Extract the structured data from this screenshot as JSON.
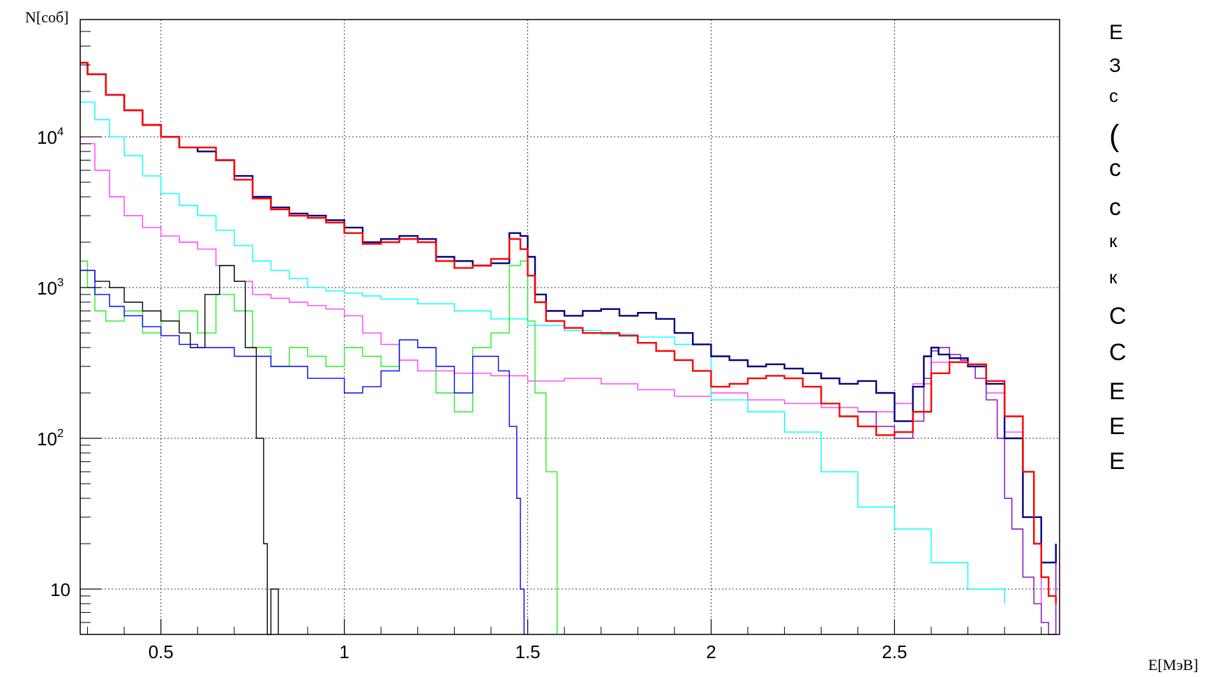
{
  "chart_data": {
    "type": "line",
    "title": "",
    "ylabel": "N[соб]",
    "xlabel": "E[МэВ]",
    "xlim": [
      0.28,
      2.95
    ],
    "ylim": [
      5,
      60000
    ],
    "y_scale": "log",
    "grid": true,
    "x_ticks": [
      {
        "value": 0.5,
        "label": "0.5"
      },
      {
        "value": 1.0,
        "label": "1"
      },
      {
        "value": 1.5,
        "label": "1.5"
      },
      {
        "value": 2.0,
        "label": "2"
      },
      {
        "value": 2.5,
        "label": "2.5"
      }
    ],
    "y_ticks": [
      {
        "value": 10,
        "label": "10",
        "exp": ""
      },
      {
        "value": 100,
        "label": "10",
        "exp": "2"
      },
      {
        "value": 1000,
        "label": "10",
        "exp": "3"
      },
      {
        "value": 10000,
        "label": "10",
        "exp": "4"
      }
    ],
    "series": [
      {
        "color": "#ff3cff",
        "x": [
          0.28,
          0.32,
          0.36,
          0.4,
          0.45,
          0.5,
          0.55,
          0.6,
          0.65,
          0.7,
          0.75,
          0.8,
          0.85,
          0.9,
          0.95,
          1.0,
          1.05,
          1.1,
          1.15,
          1.2,
          1.3,
          1.4,
          1.5,
          1.6,
          1.7,
          1.8,
          1.9,
          2.0,
          2.1,
          2.2,
          2.3,
          2.4,
          2.5,
          2.55,
          2.6,
          2.65,
          2.7,
          2.75,
          2.8,
          2.85,
          2.9
        ],
        "y": [
          9000,
          6000,
          4000,
          3000,
          2500,
          2200,
          2000,
          1800,
          1400,
          1100,
          900,
          850,
          800,
          760,
          720,
          650,
          500,
          420,
          330,
          280,
          270,
          260,
          240,
          250,
          230,
          210,
          190,
          200,
          180,
          170,
          160,
          150,
          170,
          230,
          320,
          340,
          300,
          200,
          110,
          30,
          8
        ]
      },
      {
        "color": "#00ffff",
        "x": [
          0.28,
          0.32,
          0.36,
          0.4,
          0.45,
          0.5,
          0.55,
          0.6,
          0.65,
          0.7,
          0.75,
          0.8,
          0.85,
          0.9,
          0.95,
          1.0,
          1.05,
          1.1,
          1.2,
          1.3,
          1.4,
          1.5,
          1.6,
          1.7,
          1.8,
          1.9,
          2.0,
          2.1,
          2.2,
          2.3,
          2.4,
          2.5,
          2.6,
          2.7,
          2.8
        ],
        "y": [
          17000,
          13000,
          10000,
          7500,
          5500,
          4200,
          3500,
          3000,
          2400,
          1900,
          1500,
          1300,
          1150,
          1000,
          950,
          920,
          880,
          840,
          780,
          700,
          620,
          560,
          520,
          490,
          470,
          420,
          180,
          150,
          110,
          60,
          35,
          25,
          15,
          10,
          8
        ]
      },
      {
        "color": "#22ee22",
        "x": [
          0.28,
          0.3,
          0.32,
          0.35,
          0.4,
          0.45,
          0.5,
          0.55,
          0.6,
          0.65,
          0.7,
          0.75,
          0.8,
          0.85,
          0.9,
          0.95,
          1.0,
          1.05,
          1.1,
          1.15,
          1.2,
          1.25,
          1.3,
          1.35,
          1.4,
          1.45,
          1.48,
          1.5,
          1.52,
          1.55,
          1.58
        ],
        "y": [
          1500,
          1000,
          700,
          600,
          700,
          500,
          600,
          700,
          500,
          900,
          700,
          400,
          300,
          400,
          350,
          300,
          400,
          350,
          300,
          450,
          400,
          200,
          150,
          400,
          500,
          1400,
          1500,
          600,
          200,
          60,
          5
        ]
      },
      {
        "color": "#000000",
        "x": [
          0.28,
          0.32,
          0.36,
          0.4,
          0.45,
          0.5,
          0.55,
          0.58,
          0.62,
          0.66,
          0.7,
          0.73,
          0.76,
          0.78,
          0.79,
          0.8,
          0.82
        ],
        "y": [
          1300,
          1100,
          1000,
          800,
          700,
          600,
          500,
          400,
          900,
          1400,
          1100,
          400,
          100,
          20,
          5,
          10,
          5
        ]
      },
      {
        "color": "#0000ff",
        "x": [
          0.28,
          0.32,
          0.36,
          0.4,
          0.45,
          0.5,
          0.55,
          0.6,
          0.7,
          0.8,
          0.9,
          1.0,
          1.05,
          1.1,
          1.15,
          1.2,
          1.25,
          1.3,
          1.35,
          1.4,
          1.42,
          1.45,
          1.47,
          1.48,
          1.49
        ],
        "y": [
          1300,
          900,
          750,
          650,
          550,
          480,
          420,
          400,
          350,
          300,
          250,
          200,
          220,
          280,
          450,
          400,
          300,
          200,
          350,
          350,
          280,
          120,
          40,
          10,
          5
        ]
      },
      {
        "color": "#8000c0",
        "x": [
          2.4,
          2.45,
          2.5,
          2.55,
          2.58,
          2.6,
          2.62,
          2.65,
          2.68,
          2.7,
          2.72,
          2.75,
          2.78,
          2.8,
          2.82,
          2.85,
          2.88,
          2.9,
          2.92,
          2.94
        ],
        "y": [
          150,
          120,
          100,
          130,
          250,
          380,
          400,
          360,
          330,
          300,
          250,
          180,
          100,
          40,
          25,
          12,
          8,
          6,
          5,
          20
        ]
      },
      {
        "color": "#000080",
        "x": [
          0.28,
          0.3,
          0.35,
          0.4,
          0.45,
          0.5,
          0.55,
          0.6,
          0.65,
          0.7,
          0.75,
          0.8,
          0.85,
          0.9,
          0.95,
          1.0,
          1.05,
          1.1,
          1.15,
          1.2,
          1.25,
          1.3,
          1.35,
          1.4,
          1.45,
          1.48,
          1.5,
          1.52,
          1.55,
          1.6,
          1.65,
          1.7,
          1.75,
          1.8,
          1.85,
          1.9,
          1.95,
          2.0,
          2.05,
          2.1,
          2.15,
          2.2,
          2.25,
          2.3,
          2.35,
          2.4,
          2.45,
          2.5,
          2.55,
          2.58,
          2.6,
          2.62,
          2.65,
          2.7,
          2.75,
          2.8,
          2.85,
          2.9,
          2.94
        ],
        "y": [
          31000,
          26000,
          19000,
          15000,
          12000,
          10000,
          8500,
          8000,
          7000,
          5500,
          4000,
          3400,
          3100,
          3000,
          2800,
          2500,
          2000,
          2100,
          2200,
          2100,
          1600,
          1500,
          1400,
          1450,
          2300,
          2200,
          1600,
          900,
          700,
          650,
          700,
          720,
          650,
          680,
          620,
          500,
          420,
          350,
          330,
          300,
          310,
          290,
          270,
          250,
          230,
          240,
          200,
          130,
          220,
          350,
          400,
          360,
          340,
          300,
          230,
          100,
          30,
          15,
          20
        ]
      },
      {
        "color": "#ff0000",
        "x": [
          0.28,
          0.3,
          0.35,
          0.4,
          0.45,
          0.5,
          0.55,
          0.6,
          0.65,
          0.7,
          0.75,
          0.8,
          0.85,
          0.9,
          0.95,
          1.0,
          1.05,
          1.1,
          1.15,
          1.2,
          1.25,
          1.3,
          1.35,
          1.4,
          1.45,
          1.48,
          1.5,
          1.52,
          1.55,
          1.6,
          1.65,
          1.7,
          1.75,
          1.8,
          1.85,
          1.9,
          1.95,
          2.0,
          2.05,
          2.1,
          2.15,
          2.2,
          2.25,
          2.3,
          2.35,
          2.4,
          2.45,
          2.5,
          2.55,
          2.6,
          2.65,
          2.7,
          2.75,
          2.8,
          2.85,
          2.88,
          2.9,
          2.92,
          2.94
        ],
        "y": [
          31000,
          26000,
          19000,
          15000,
          12000,
          10000,
          8500,
          8500,
          7000,
          5200,
          3900,
          3300,
          3000,
          2900,
          2700,
          2300,
          1950,
          2000,
          2100,
          2000,
          1500,
          1350,
          1400,
          1550,
          2100,
          1800,
          1200,
          800,
          600,
          540,
          500,
          500,
          480,
          430,
          380,
          330,
          280,
          220,
          230,
          250,
          260,
          250,
          220,
          170,
          140,
          120,
          105,
          110,
          150,
          270,
          320,
          310,
          240,
          140,
          60,
          20,
          12,
          9,
          8
        ]
      }
    ],
    "right_edge_glyphs": [
      "Е",
      "З",
      "с",
      "(",
      "с",
      "с",
      "к",
      "к",
      "С",
      "С",
      "Е",
      "Е",
      "Е"
    ]
  }
}
